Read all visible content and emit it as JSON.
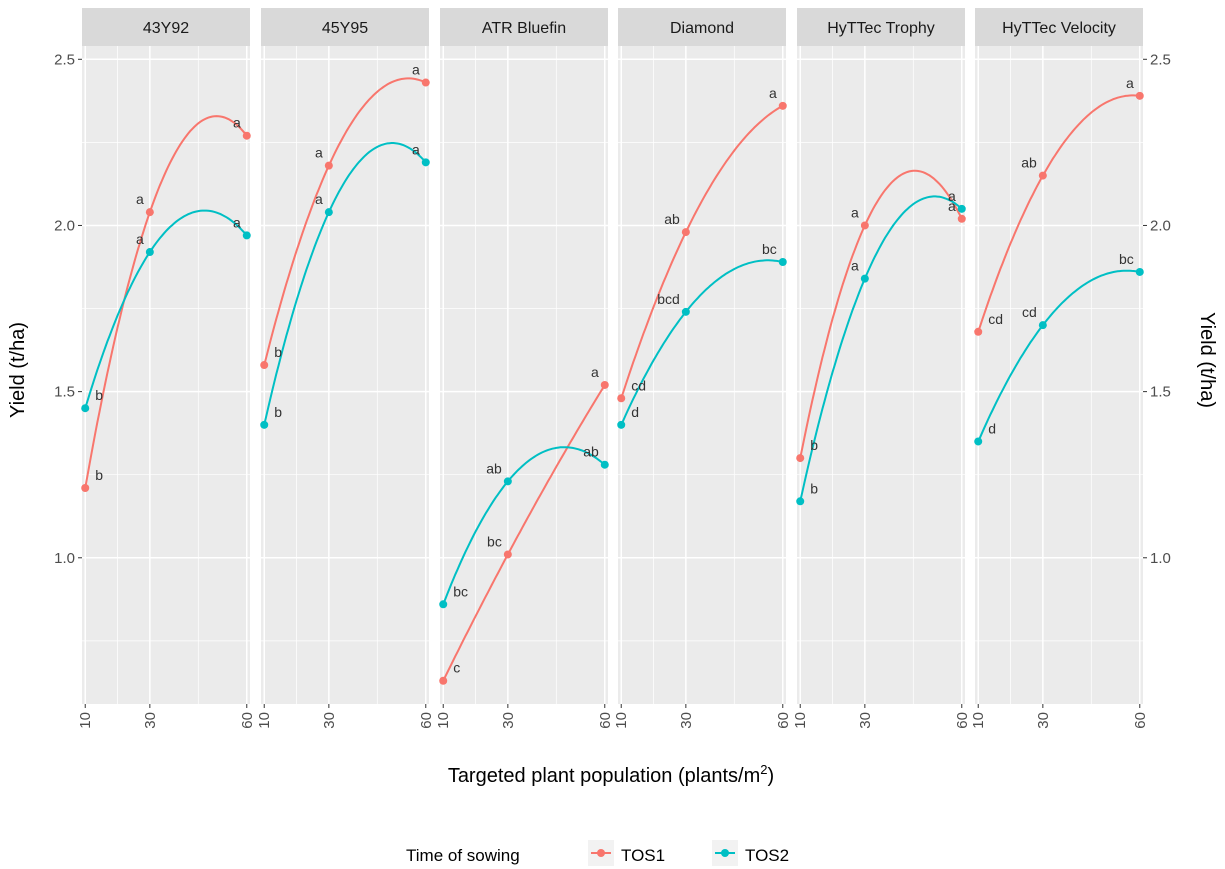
{
  "chart_data": {
    "type": "line",
    "xlabel": "Targeted plant population",
    "xlabel_unit": "plants",
    "xlabel_unit_denom": "m",
    "xlabel_unit_exp": "2",
    "ylabel": "Yield (t/ha)",
    "ylabel_right": "Yield (t/ha)",
    "xlim": [
      9,
      61
    ],
    "ylim": [
      0.56,
      2.54
    ],
    "x_ticks": [
      10,
      30,
      60
    ],
    "y_ticks": [
      1.0,
      1.5,
      2.0,
      2.5
    ],
    "y_tick_labels": [
      "1.0",
      "1.5",
      "2.0",
      "2.5"
    ],
    "grid": true,
    "legend_position": "bottom",
    "legend_title": "Time of sowing",
    "series_styles": [
      {
        "name": "TOS1",
        "color": "#F8766D"
      },
      {
        "name": "TOS2",
        "color": "#00BFC4"
      }
    ],
    "panels": [
      {
        "title": "43Y92",
        "series": [
          {
            "name": "TOS1",
            "points": [
              {
                "x": 10,
                "y": 1.21,
                "label": "b"
              },
              {
                "x": 30,
                "y": 2.04,
                "label": "a"
              },
              {
                "x": 60,
                "y": 2.27,
                "label": "a"
              }
            ]
          },
          {
            "name": "TOS2",
            "points": [
              {
                "x": 10,
                "y": 1.45,
                "label": "b"
              },
              {
                "x": 30,
                "y": 1.92,
                "label": "a"
              },
              {
                "x": 60,
                "y": 1.97,
                "label": "a"
              }
            ]
          }
        ]
      },
      {
        "title": "45Y95",
        "series": [
          {
            "name": "TOS1",
            "points": [
              {
                "x": 10,
                "y": 1.58,
                "label": "b"
              },
              {
                "x": 30,
                "y": 2.18,
                "label": "a"
              },
              {
                "x": 60,
                "y": 2.43,
                "label": "a"
              }
            ]
          },
          {
            "name": "TOS2",
            "points": [
              {
                "x": 10,
                "y": 1.4,
                "label": "b"
              },
              {
                "x": 30,
                "y": 2.04,
                "label": "a"
              },
              {
                "x": 60,
                "y": 2.19,
                "label": "a"
              }
            ]
          }
        ]
      },
      {
        "title": "ATR Bluefin",
        "series": [
          {
            "name": "TOS1",
            "points": [
              {
                "x": 10,
                "y": 0.63,
                "label": "c"
              },
              {
                "x": 30,
                "y": 1.01,
                "label": "bc"
              },
              {
                "x": 60,
                "y": 1.52,
                "label": "a"
              }
            ]
          },
          {
            "name": "TOS2",
            "points": [
              {
                "x": 10,
                "y": 0.86,
                "label": "bc"
              },
              {
                "x": 30,
                "y": 1.23,
                "label": "ab"
              },
              {
                "x": 60,
                "y": 1.28,
                "label": "ab"
              }
            ]
          }
        ]
      },
      {
        "title": "Diamond",
        "series": [
          {
            "name": "TOS1",
            "points": [
              {
                "x": 10,
                "y": 1.48,
                "label": "cd"
              },
              {
                "x": 30,
                "y": 1.98,
                "label": "ab"
              },
              {
                "x": 60,
                "y": 2.36,
                "label": "a"
              }
            ]
          },
          {
            "name": "TOS2",
            "points": [
              {
                "x": 10,
                "y": 1.4,
                "label": "d"
              },
              {
                "x": 30,
                "y": 1.74,
                "label": "bcd"
              },
              {
                "x": 60,
                "y": 1.89,
                "label": "bc"
              }
            ]
          }
        ]
      },
      {
        "title": "HyTTec Trophy",
        "series": [
          {
            "name": "TOS1",
            "points": [
              {
                "x": 10,
                "y": 1.3,
                "label": "b"
              },
              {
                "x": 30,
                "y": 2.0,
                "label": "a"
              },
              {
                "x": 60,
                "y": 2.02,
                "label": "a"
              }
            ]
          },
          {
            "name": "TOS2",
            "points": [
              {
                "x": 10,
                "y": 1.17,
                "label": "b"
              },
              {
                "x": 30,
                "y": 1.84,
                "label": "a"
              },
              {
                "x": 60,
                "y": 2.05,
                "label": "a"
              }
            ]
          }
        ]
      },
      {
        "title": "HyTTec Velocity",
        "series": [
          {
            "name": "TOS1",
            "points": [
              {
                "x": 10,
                "y": 1.68,
                "label": "cd"
              },
              {
                "x": 30,
                "y": 2.15,
                "label": "ab"
              },
              {
                "x": 60,
                "y": 2.39,
                "label": "a"
              }
            ]
          },
          {
            "name": "TOS2",
            "points": [
              {
                "x": 10,
                "y": 1.35,
                "label": "d"
              },
              {
                "x": 30,
                "y": 1.7,
                "label": "cd"
              },
              {
                "x": 60,
                "y": 1.86,
                "label": "bc"
              }
            ]
          }
        ]
      }
    ]
  }
}
